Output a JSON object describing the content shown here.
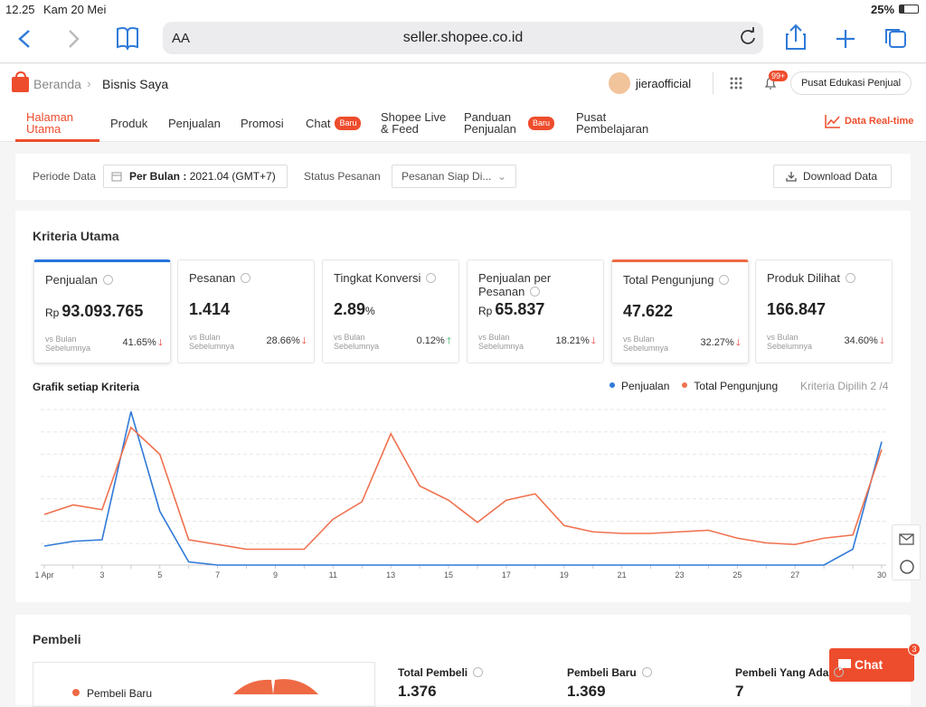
{
  "status_bar": {
    "time": "12.25",
    "date": "Kam 20 Mei",
    "battery": "25%"
  },
  "browser": {
    "text_size": "AA",
    "url": "seller.shopee.co.id"
  },
  "header": {
    "breadcrumb": [
      "Beranda",
      "Bisnis Saya"
    ],
    "user": "jieraofficial",
    "notification_badge": "99+",
    "edu_button": "Pusat Edukasi Penjual"
  },
  "tabs": [
    {
      "label": "Halaman Utama",
      "active": true
    },
    {
      "label": "Produk"
    },
    {
      "label": "Penjualan"
    },
    {
      "label": "Promosi"
    },
    {
      "label": "Chat",
      "badge": "Baru"
    },
    {
      "label": "Shopee Live & Feed"
    },
    {
      "label": "Panduan Penjualan",
      "badge": "Baru"
    },
    {
      "label": "Pusat Pembelajaran"
    }
  ],
  "realtime": "Data Real-time",
  "filter": {
    "period_label": "Periode Data",
    "period_type": "Per Bulan :",
    "period_value": "2021.04 (GMT+7)",
    "status_label": "Status Pesanan",
    "status_value": "Pesanan Siap Di...",
    "download": "Download Data"
  },
  "kriteria": {
    "title": "Kriteria Utama",
    "cards": [
      {
        "name": "Penjualan",
        "prefix": "Rp",
        "value": "93.093.765",
        "compare": "vs Bulan Sebelumnya",
        "change": "41.65%",
        "direction": "down",
        "color": "#2673dd"
      },
      {
        "name": "Pesanan",
        "value": "1.414",
        "compare": "vs Bulan Sebelumnya",
        "change": "28.66%",
        "direction": "down"
      },
      {
        "name": "Tingkat Konversi",
        "value": "2.89",
        "suffix": "%",
        "compare": "vs Bulan Sebelumnya",
        "change": "0.12%",
        "direction": "up"
      },
      {
        "name": "Penjualan per Pesanan",
        "prefix": "Rp",
        "value": "65.837",
        "compare": "vs Bulan Sebelumnya",
        "change": "18.21%",
        "direction": "down"
      },
      {
        "name": "Total Pengunjung",
        "value": "47.622",
        "compare": "vs Bulan Sebelumnya",
        "change": "32.27%",
        "direction": "down",
        "color": "#ee6a45"
      },
      {
        "name": "Produk Dilihat",
        "value": "166.847",
        "compare": "vs Bulan Sebelumnya",
        "change": "34.60%",
        "direction": "down"
      }
    ]
  },
  "chart_data": {
    "type": "line",
    "title": "Grafik setiap Kriteria",
    "selected": "Kriteria Dipilih 2 /4",
    "categories": [
      "1 Apr",
      null,
      "3",
      null,
      "5",
      null,
      "7",
      null,
      "9",
      null,
      "11",
      null,
      "13",
      null,
      "15",
      null,
      "17",
      null,
      "19",
      null,
      "21",
      null,
      "23",
      null,
      "25",
      null,
      "27",
      null,
      null,
      "30"
    ],
    "ylim": [
      0,
      100
    ],
    "series": [
      {
        "name": "Penjualan",
        "color": "#2f7ad8",
        "values": [
          12,
          15,
          16,
          97,
          34,
          2,
          0,
          0,
          0,
          0,
          0,
          0,
          0,
          0,
          0,
          0,
          0,
          0,
          0,
          0,
          0,
          0,
          0,
          0,
          0,
          0,
          0,
          0,
          10,
          78
        ]
      },
      {
        "name": "Total Pengunjung",
        "color": "#f0714f",
        "values": [
          32,
          38,
          35,
          87,
          70,
          16,
          13,
          10,
          10,
          10,
          29,
          40,
          83,
          50,
          41,
          27,
          41,
          45,
          25,
          21,
          20,
          20,
          21,
          22,
          17,
          14,
          13,
          17,
          19,
          73
        ]
      }
    ]
  },
  "pembeli": {
    "title": "Pembeli",
    "legend": "Pembeli Baru",
    "stats": [
      {
        "label": "Total Pembeli",
        "value": "1.376"
      },
      {
        "label": "Pembeli Baru",
        "value": "1.369"
      },
      {
        "label": "Pembeli Yang Ada",
        "value": "7"
      }
    ]
  },
  "chat": {
    "label": "Chat",
    "badge": "3"
  }
}
